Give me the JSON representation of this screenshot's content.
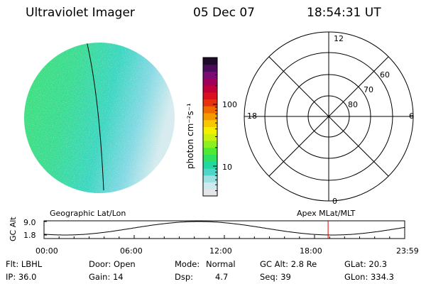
{
  "header": {
    "instrument": "Ultraviolet Imager",
    "date": "05 Dec 07",
    "time": "18:54:31 UT"
  },
  "colorbar": {
    "unit_label": "photon cm⁻²s⁻¹",
    "ticks": [
      {
        "value": 100,
        "label": "100"
      },
      {
        "value": 10,
        "label": "10"
      }
    ],
    "colors": [
      "#e6e6e6",
      "#cfe9ee",
      "#9fe1e3",
      "#4fd6c8",
      "#20d8a0",
      "#30e060",
      "#50ea30",
      "#8cf020",
      "#c8f010",
      "#f2f000",
      "#f6c800",
      "#f49a00",
      "#f06800",
      "#e63010",
      "#d81020",
      "#c0003a",
      "#a0005a",
      "#7a0c72",
      "#4a0c5a",
      "#1e0a2a"
    ]
  },
  "polar": {
    "mlt_labels": [
      "12",
      "18",
      "6",
      "0"
    ],
    "lat_labels": [
      "60",
      "70",
      "80"
    ]
  },
  "timeline": {
    "left_title": "Geographic Lat/Lon",
    "right_title": "Apex MLat/MLT",
    "ylabel": "GC Alt",
    "y_ticks": [
      "9.0",
      "1.8"
    ],
    "x_ticks": [
      "00:00",
      "06:00",
      "12:00",
      "18:00",
      "23:59"
    ],
    "current_marker_hours": 18.9
  },
  "info": {
    "flt": "Flt: LBHL",
    "door": "Door: Open",
    "mode_label": "Mode:",
    "mode_value": "Normal",
    "gcalt": "GC Alt: 2.8 Re",
    "glat": "GLat:  20.3",
    "ip": "IP: 36.0",
    "gain": "Gain: 14",
    "dsp_label": "Dsp:",
    "dsp_value": "4.7",
    "seq": "Seq: 39",
    "glon": "GLon: 334.3"
  }
}
